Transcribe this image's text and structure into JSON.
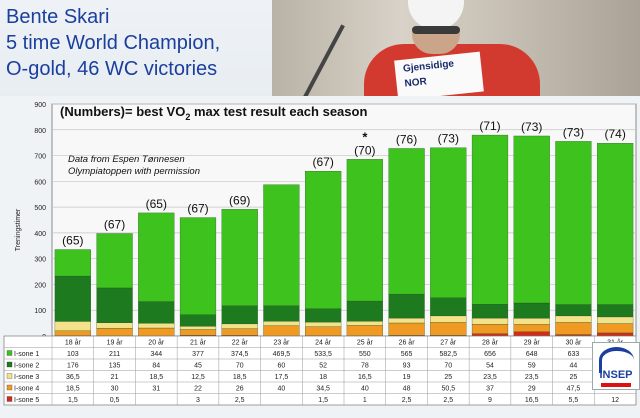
{
  "title_lines": [
    "Bente Skari",
    "5 time World Champion,",
    "O-gold, 46 WC victories"
  ],
  "photo_bib": [
    "Gjensidige",
    "NOR"
  ],
  "logo_text": "INSEP",
  "chart_data": {
    "type": "bar",
    "stacked": true,
    "title_prefix": "(Numbers)= best VO",
    "title_sub": "2",
    "title_suffix": " max test result each season",
    "source_note": [
      "Data from Espen Tønnesen",
      "Olympiatoppen with permission"
    ],
    "ylabel": "Treningstimer",
    "ylim": [
      0,
      900
    ],
    "yticks": [
      0,
      100,
      200,
      300,
      400,
      500,
      600,
      700,
      800,
      900
    ],
    "grid": true,
    "categories": [
      "18 år",
      "19 år",
      "20 år",
      "21 år",
      "22 år",
      "23 år",
      "24 år",
      "25 år",
      "26 år",
      "27 år",
      "28 år",
      "29 år",
      "30 år",
      "31 år"
    ],
    "vo2_labels": [
      "(65)",
      "(67)",
      "(65)",
      "(67)",
      "(69)",
      "",
      "(67)",
      "(70)",
      "(76)",
      "(73)",
      "(71)",
      "(73)",
      "(73)",
      "(74)"
    ],
    "annotation_star": {
      "category_index": 7,
      "text": "*"
    },
    "series": [
      {
        "name": "I-sone 1",
        "color": "#3ec21e",
        "values": [
          "103",
          "211",
          "344",
          "377",
          "374,5",
          "469,5",
          "533,5",
          "550",
          "565",
          "582,5",
          "656",
          "648",
          "633",
          "6.."
        ],
        "plot": [
          103,
          211,
          344,
          377,
          374.5,
          469.5,
          533.5,
          550,
          565,
          582.5,
          656,
          648,
          633,
          626
        ]
      },
      {
        "name": "I-sone 2",
        "color": "#1e7a1e",
        "values": [
          "176",
          "135",
          "84",
          "45",
          "70",
          "60",
          "52",
          "78",
          "93",
          "70",
          "54",
          "59",
          "44",
          ""
        ],
        "plot": [
          176,
          135,
          84,
          45,
          70,
          60,
          52,
          78,
          93,
          70,
          54,
          59,
          44,
          48
        ]
      },
      {
        "name": "I-sone 3",
        "color": "#f3e28a",
        "values": [
          "36,5",
          "21",
          "18,5",
          "12,5",
          "18,5",
          "17,5",
          "18",
          "16,5",
          "19",
          "25",
          "23,5",
          "23,5",
          "25",
          ""
        ],
        "plot": [
          36.5,
          21,
          18.5,
          12.5,
          18.5,
          17.5,
          18,
          16.5,
          19,
          25,
          23.5,
          23.5,
          25,
          26
        ]
      },
      {
        "name": "I-sone 4",
        "color": "#f09a23",
        "values": [
          "18,5",
          "30",
          "31",
          "22",
          "26",
          "40",
          "34,5",
          "40",
          "48",
          "50,5",
          "37",
          "29",
          "47,5",
          ""
        ],
        "plot": [
          18.5,
          30,
          31,
          22,
          26,
          40,
          34.5,
          40,
          48,
          50.5,
          37,
          29,
          47.5,
          36
        ]
      },
      {
        "name": "I-sone 5",
        "color": "#d32a1a",
        "values": [
          "1,5",
          "0,5",
          "",
          "3",
          "2,5",
          "",
          "1,5",
          "1",
          "2,5",
          "2,5",
          "9",
          "16,5",
          "5,5",
          "12"
        ],
        "plot": [
          1.5,
          0.5,
          0,
          3,
          2.5,
          0,
          1.5,
          1,
          2.5,
          2.5,
          9,
          16.5,
          5.5,
          12
        ]
      }
    ]
  }
}
